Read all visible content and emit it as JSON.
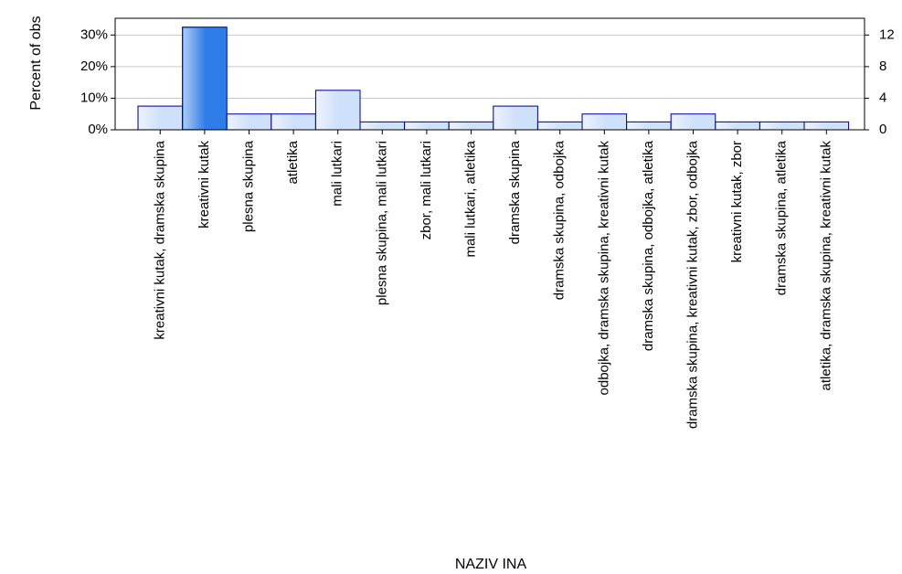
{
  "chart_data": {
    "type": "bar",
    "ylabel": "Percent of obs",
    "xlabel": "NAZIV INA",
    "categories": [
      "kreativni kutak, dramska skupina",
      "kreativni kutak",
      "plesna skupina",
      "atletika",
      "mali lutkari",
      "plesna skupina, mali lutkari",
      "zbor, mali lutkari",
      "mali lutkari, atletika",
      "dramska skupina",
      "dramska skupina, odbojka",
      "odbojka, dramska skupina, kreativni kutak",
      "dramska skupina, odbojka, atletika",
      "dramska skupina, kreativni kutak, zbor, odbojka",
      "kreativni kutak, zbor",
      "dramska skupina, atletika",
      "atletika, dramska skupina, kreativni kutak"
    ],
    "values": [
      7.5,
      32.5,
      5,
      5,
      12.5,
      2.5,
      2.5,
      2.5,
      7.5,
      2.5,
      5,
      2.5,
      5,
      2.5,
      2.5,
      2.5
    ],
    "colors": [
      "#cfe0fa",
      "#2f7de8",
      "#cfe0fa",
      "#cfe0fa",
      "#cfe0fa",
      "#cfe0fa",
      "#cfe0fa",
      "#cfe0fa",
      "#cfe0fa",
      "#cfe0fa",
      "#cfe0fa",
      "#cfe0fa",
      "#cfe0fa",
      "#cfe0fa",
      "#cfe0fa",
      "#cfe0fa"
    ],
    "ylim": [
      0,
      35.3
    ],
    "yticks": [
      {
        "value": 0,
        "label": "0%"
      },
      {
        "value": 10,
        "label": "10%"
      },
      {
        "value": 20,
        "label": "20%"
      },
      {
        "value": 30,
        "label": "30%"
      }
    ],
    "y2lim": [
      0,
      14.12
    ],
    "y2ticks": [
      0,
      4,
      8,
      12
    ],
    "grid": true
  }
}
